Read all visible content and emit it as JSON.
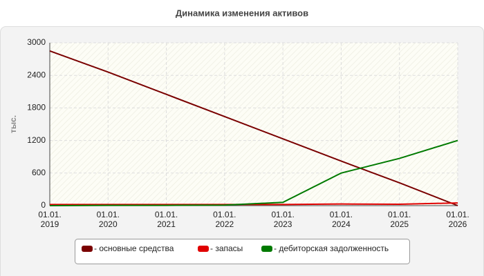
{
  "chart_data": {
    "type": "line",
    "title": "Динамика изменения активов",
    "y_label": "тыс.",
    "categories": [
      "01.01.\n2019",
      "01.01.\n2020",
      "01.01.\n2021",
      "01.01.\n2022",
      "01.01.\n2023",
      "01.01.\n2024",
      "01.01.\n2025",
      "01.01.\n2026"
    ],
    "series": [
      {
        "name": "- основные средства",
        "color": "#7a0000",
        "values": [
          2850,
          2460,
          2050,
          1640,
          1230,
          820,
          420,
          0
        ]
      },
      {
        "name": "- запасы",
        "color": "#e00000",
        "values": [
          20,
          20,
          20,
          20,
          20,
          30,
          25,
          50
        ]
      },
      {
        "name": "- дебиторская задолженность",
        "color": "#007a00",
        "values": [
          0,
          5,
          5,
          10,
          60,
          600,
          870,
          1200
        ]
      }
    ],
    "ylim": [
      0,
      3000
    ],
    "yticks": [
      0,
      600,
      1200,
      1800,
      2400,
      3000
    ],
    "grid": true
  }
}
